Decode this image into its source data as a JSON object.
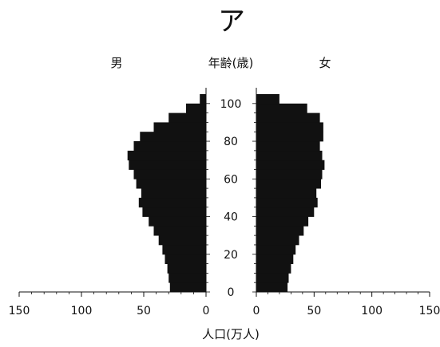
{
  "chart_data": {
    "type": "bar",
    "orientation": "horizontal",
    "subtype": "population-pyramid",
    "title": "ア",
    "left_group_label": "男",
    "right_group_label": "女",
    "center_axis_label": "年齢(歳)",
    "xlabel": "人口(万人)",
    "xlim": [
      0,
      150
    ],
    "ylim": [
      0,
      105
    ],
    "x_ticks_left": [
      "150",
      "100",
      "50",
      "0"
    ],
    "x_ticks_right": [
      "0",
      "50",
      "100",
      "150"
    ],
    "y_ticks": [
      "0",
      "20",
      "40",
      "60",
      "80",
      "100"
    ],
    "bar_color": "#111111",
    "series": [
      {
        "name": "男",
        "ages": [
          0,
          5,
          10,
          15,
          20,
          25,
          30,
          35,
          40,
          45,
          50,
          55,
          60,
          65,
          70,
          75,
          80,
          85,
          90,
          95,
          100,
          105
        ],
        "values": [
          29,
          30,
          31,
          33,
          35,
          38,
          42,
          46,
          51,
          54,
          52,
          56,
          58,
          62,
          63,
          58,
          53,
          42,
          30,
          16,
          5,
          1
        ]
      },
      {
        "name": "女",
        "ages": [
          0,
          5,
          10,
          15,
          20,
          25,
          30,
          35,
          40,
          45,
          50,
          55,
          60,
          65,
          70,
          75,
          80,
          85,
          90,
          95,
          100,
          105
        ],
        "values": [
          27,
          28,
          30,
          32,
          34,
          37,
          41,
          45,
          50,
          53,
          52,
          56,
          57,
          59,
          57,
          55,
          58,
          58,
          55,
          44,
          20,
          3
        ]
      }
    ]
  }
}
